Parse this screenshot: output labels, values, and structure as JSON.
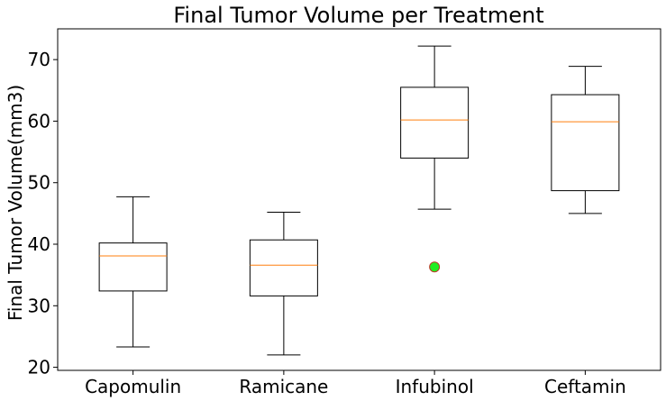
{
  "chart_data": {
    "type": "box",
    "title": "Final Tumor Volume per Treatment",
    "xlabel": "",
    "ylabel": "Final Tumor Volume(mm3)",
    "ylim": [
      19.5,
      75.0
    ],
    "yticks": [
      20,
      30,
      40,
      50,
      60,
      70
    ],
    "grid": false,
    "categories": [
      "Capomulin",
      "Ramicane",
      "Infubinol",
      "Ceftamin"
    ],
    "boxes": [
      {
        "category": "Capomulin",
        "whisker_low": 23.3,
        "q1": 32.4,
        "median": 38.1,
        "q3": 40.2,
        "whisker_high": 47.7,
        "outliers": []
      },
      {
        "category": "Ramicane",
        "whisker_low": 22.0,
        "q1": 31.6,
        "median": 36.6,
        "q3": 40.7,
        "whisker_high": 45.2,
        "outliers": []
      },
      {
        "category": "Infubinol",
        "whisker_low": 45.7,
        "q1": 54.0,
        "median": 60.2,
        "q3": 65.5,
        "whisker_high": 72.2,
        "outliers": [
          36.3
        ]
      },
      {
        "category": "Ceftamin",
        "whisker_low": 45.0,
        "q1": 48.7,
        "median": 59.9,
        "q3": 64.3,
        "whisker_high": 68.9,
        "outliers": []
      }
    ],
    "colors": {
      "box": "#000000",
      "median": "#ff7f0e",
      "outlier_fill": "#22ee22",
      "outlier_edge": "#c0392b"
    }
  }
}
